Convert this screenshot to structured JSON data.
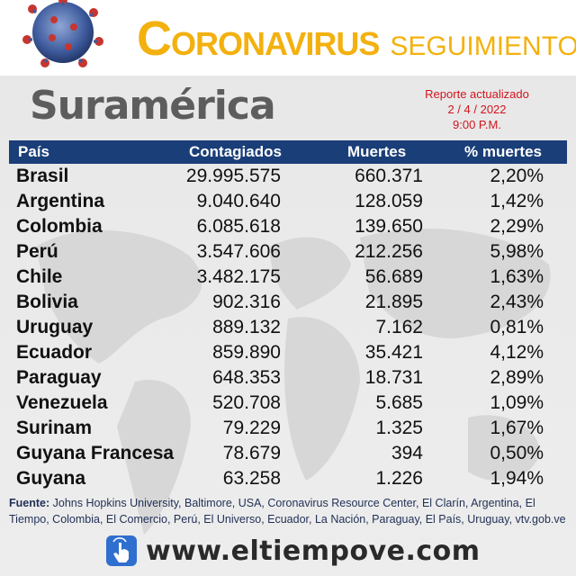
{
  "header": {
    "brand_main_cap": "C",
    "brand_main_rest": "ORONAVIRUS",
    "brand_sub": "SEGUIMIENTO"
  },
  "region": "Suramérica",
  "report": {
    "line1": "Reporte actualizado",
    "line2": "2 / 4 / 2022",
    "line3": "9:00 P.M."
  },
  "table": {
    "headers": [
      "País",
      "Contagiados",
      "Muertes",
      "% muertes"
    ],
    "rows": [
      [
        "Brasil",
        "29.995.575",
        "660.371",
        "2,20%"
      ],
      [
        "Argentina",
        "9.040.640",
        "128.059",
        "1,42%"
      ],
      [
        "Colombia",
        "6.085.618",
        "139.650",
        "2,29%"
      ],
      [
        "Perú",
        "3.547.606",
        "212.256",
        "5,98%"
      ],
      [
        "Chile",
        "3.482.175",
        "56.689",
        "1,63%"
      ],
      [
        "Bolivia",
        "902.316",
        "21.895",
        "2,43%"
      ],
      [
        "Uruguay",
        "889.132",
        "7.162",
        "0,81%"
      ],
      [
        "Ecuador",
        "859.890",
        "35.421",
        "4,12%"
      ],
      [
        "Paraguay",
        "648.353",
        "18.731",
        "2,89%"
      ],
      [
        "Venezuela",
        "520.708",
        "5.685",
        "1,09%"
      ],
      [
        "Surinam",
        "79.229",
        "1.325",
        "1,67%"
      ],
      [
        "Guyana Francesa",
        "78.679",
        "394",
        "0,50%"
      ],
      [
        "Guyana",
        "63.258",
        "1.226",
        "1,94%"
      ]
    ]
  },
  "footer": {
    "label": "Fuente:",
    "text": "Johns Hopkins University, Baltimore, USA, Coronavirus Resource Center, El Clarín, Argentina, El Tiempo, Colombia, El Comercio, Perú, El Universo, Ecuador, La Nación, Paraguay, El País, Uruguay, vtv.gob.ve"
  },
  "website": "www.eltiempove.com",
  "colors": {
    "brand": "#f3b10f",
    "header_bar": "#1a3e78",
    "report": "#d1141d",
    "region": "#5d5d5d"
  },
  "icons": [
    "coronavirus-image",
    "hand-pointer-icon"
  ]
}
